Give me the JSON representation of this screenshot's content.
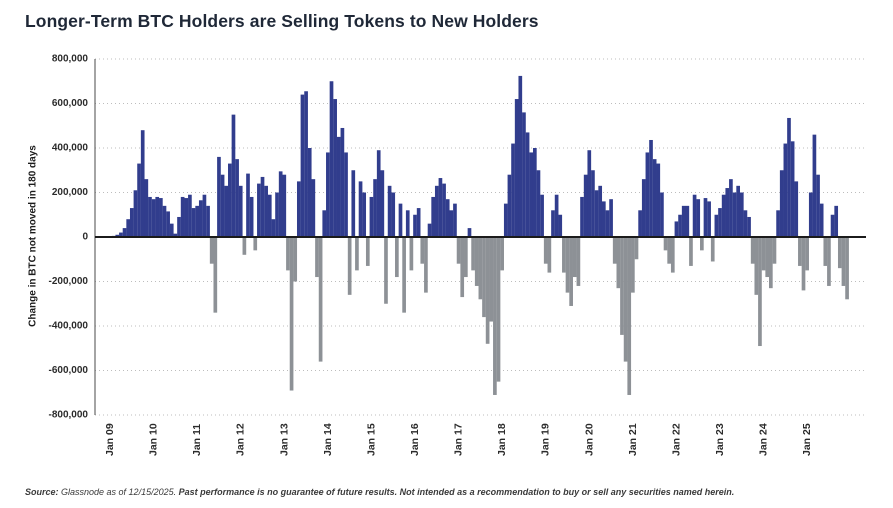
{
  "title": "Longer-Term BTC Holders are Selling Tokens to New Holders",
  "y_axis": {
    "label": "Change in BTC not moved in 180 days",
    "tick_labels": [
      "800,000",
      "600,000",
      "400,000",
      "200,000",
      "0",
      "-200,000",
      "-400,000",
      "-600,000",
      "-800,000"
    ],
    "tick_values": [
      800000,
      600000,
      400000,
      200000,
      0,
      -200000,
      -400000,
      -600000,
      -800000
    ]
  },
  "x_axis": {
    "tick_labels": [
      "Jan 09",
      "Jan 10",
      "Jan 11",
      "Jan 12",
      "Jan 13",
      "Jan 14",
      "Jan 15",
      "Jan 16",
      "Jan 17",
      "Jan 18",
      "Jan 19",
      "Jan 20",
      "Jan 21",
      "Jan 22",
      "Jan 23",
      "Jan 24",
      "Jan 25"
    ]
  },
  "footer": {
    "source_label": "Source:",
    "source_text": " Glassnode as of 12/15/2025. ",
    "disclaimer": "Past performance is no guarantee of future results. Not intended as a recommendation to buy or sell any securities named herein."
  },
  "colors": {
    "positive": "#313d8d",
    "negative": "#8d9196",
    "grid": "#bdbdbd",
    "zero_line": "#1b1b1b",
    "axis_spine": "#4a4a4a",
    "tick_text": "#2b2b2b",
    "title_text": "#1f2837"
  },
  "chart_data": {
    "type": "bar",
    "title": "Longer-Term BTC Holders are Selling Tokens to New Holders",
    "ylabel": "Change in BTC not moved in 180 days",
    "unit": "BTC",
    "frequency": "monthly",
    "start": "Jan 2009",
    "end": "Dec 2025",
    "ylim": [
      -800000,
      800000
    ],
    "grid": "dotted horizontal gridlines at every 200,000; solid line at 0",
    "legend": "none",
    "values_thousands": [
      2,
      5,
      10,
      20,
      40,
      80,
      130,
      210,
      330,
      480,
      260,
      180,
      170,
      180,
      175,
      140,
      115,
      60,
      15,
      90,
      180,
      175,
      190,
      130,
      140,
      165,
      190,
      140,
      -120,
      -340,
      360,
      280,
      230,
      330,
      550,
      350,
      230,
      -80,
      285,
      180,
      -60,
      240,
      270,
      230,
      190,
      80,
      200,
      295,
      280,
      -150,
      -690,
      -200,
      250,
      640,
      655,
      400,
      260,
      -180,
      -560,
      120,
      380,
      700,
      620,
      450,
      490,
      380,
      -260,
      300,
      -150,
      250,
      200,
      -130,
      180,
      260,
      390,
      300,
      -300,
      230,
      200,
      -180,
      150,
      -340,
      120,
      -150,
      100,
      130,
      -120,
      -250,
      60,
      180,
      230,
      265,
      240,
      170,
      120,
      150,
      -120,
      -270,
      -180,
      40,
      -150,
      -220,
      -280,
      -360,
      -480,
      -380,
      -710,
      -650,
      -150,
      150,
      280,
      420,
      620,
      724,
      560,
      470,
      380,
      400,
      300,
      190,
      -120,
      -160,
      120,
      190,
      100,
      -160,
      -250,
      -310,
      -180,
      -220,
      180,
      280,
      390,
      300,
      210,
      230,
      160,
      120,
      170,
      -120,
      -230,
      -440,
      -560,
      -710,
      -250,
      -100,
      120,
      260,
      380,
      436,
      350,
      330,
      200,
      -60,
      -120,
      -160,
      70,
      100,
      140,
      140,
      -130,
      190,
      170,
      -60,
      175,
      160,
      -110,
      100,
      130,
      190,
      220,
      260,
      200,
      230,
      200,
      120,
      90,
      -120,
      -260,
      -490,
      -150,
      -180,
      -230,
      -120,
      120,
      300,
      420,
      535,
      430,
      250,
      -130,
      -240,
      -150,
      200,
      460,
      280,
      150,
      -130,
      -220,
      100,
      140,
      -140,
      -220,
      -280
    ]
  }
}
